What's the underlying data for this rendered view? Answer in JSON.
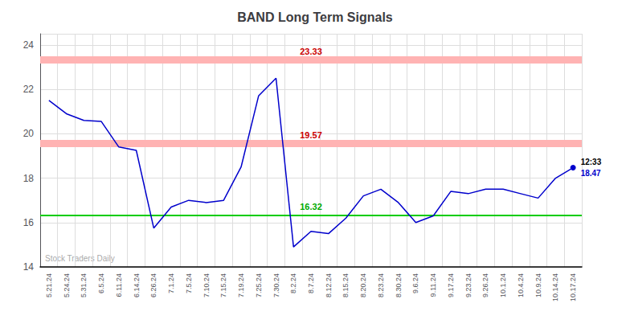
{
  "chart_data": {
    "type": "line",
    "title": "BAND Long Term Signals",
    "categories": [
      "5.21.24",
      "5.24.24",
      "5.31.24",
      "6.5.24",
      "6.11.24",
      "6.14.24",
      "6.26.24",
      "7.1.24",
      "7.5.24",
      "7.10.24",
      "7.15.24",
      "7.19.24",
      "7.25.24",
      "7.30.24",
      "8.2.24",
      "8.7.24",
      "8.12.24",
      "8.15.24",
      "8.20.24",
      "8.23.24",
      "8.30.24",
      "9.6.24",
      "9.11.24",
      "9.17.24",
      "9.23.24",
      "9.26.24",
      "10.1.24",
      "10.4.24",
      "10.9.24",
      "10.14.24",
      "10.17.24"
    ],
    "values": [
      21.5,
      20.9,
      20.6,
      20.55,
      19.4,
      19.25,
      15.75,
      16.7,
      17.0,
      16.9,
      17.0,
      18.5,
      21.7,
      22.5,
      14.9,
      15.6,
      15.5,
      16.2,
      17.2,
      17.5,
      16.9,
      16.0,
      16.3,
      17.4,
      17.3,
      17.5,
      17.5,
      17.3,
      17.1,
      18.0,
      18.47
    ],
    "color": "#0000cc",
    "ylim": [
      14,
      24.5
    ],
    "yticks": [
      14,
      16,
      18,
      20,
      22,
      24
    ],
    "grid": true,
    "hlines": [
      {
        "value": 23.33,
        "label": "23.33",
        "color": "#cc0000",
        "band_color": "#ffb3b3"
      },
      {
        "value": 19.57,
        "label": "19.57",
        "color": "#cc0000",
        "band_color": "#ffb3b3"
      },
      {
        "value": 16.32,
        "label": "16.32",
        "color": "#00aa00",
        "band_color": "#00cc00"
      }
    ],
    "annotations": [
      {
        "text": "12:33",
        "color": "#000000"
      },
      {
        "text": "18.47",
        "color": "#0000cc"
      }
    ],
    "watermark": "Stock Traders Daily"
  }
}
